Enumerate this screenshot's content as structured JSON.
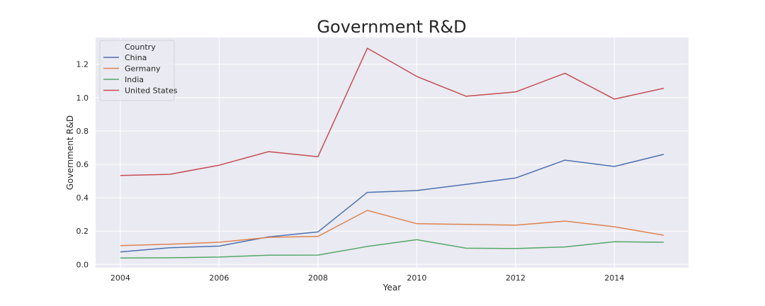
{
  "chart_data": {
    "type": "line",
    "title": "Government R&D",
    "xlabel": "Year",
    "ylabel": "Government R&D",
    "xlim": [
      2003.5,
      2015.5
    ],
    "ylim": [
      -0.02,
      1.36
    ],
    "x": [
      2004,
      2005,
      2006,
      2007,
      2008,
      2009,
      2010,
      2011,
      2012,
      2013,
      2014,
      2015
    ],
    "x_ticks": [
      2004,
      2006,
      2008,
      2010,
      2012,
      2014
    ],
    "x_tick_labels": [
      "2004",
      "2006",
      "2008",
      "2010",
      "2012",
      "2014"
    ],
    "y_ticks": [
      0.0,
      0.2,
      0.4,
      0.6,
      0.8,
      1.0,
      1.2
    ],
    "y_tick_labels": [
      "0.0",
      "0.2",
      "0.4",
      "0.6",
      "0.8",
      "1.0",
      "1.2"
    ],
    "grid": true,
    "legend": {
      "title": "Country",
      "placement": "top-left"
    },
    "series": [
      {
        "name": "China",
        "color": "#4c72b0",
        "values": [
          0.075,
          0.1,
          0.11,
          0.165,
          0.195,
          0.432,
          0.443,
          0.48,
          0.518,
          0.625,
          0.587,
          0.66
        ]
      },
      {
        "name": "Germany",
        "color": "#dd8452",
        "values": [
          0.113,
          0.121,
          0.133,
          0.162,
          0.168,
          0.324,
          0.244,
          0.24,
          0.235,
          0.26,
          0.226,
          0.175
        ]
      },
      {
        "name": "India",
        "color": "#55a868",
        "values": [
          0.038,
          0.04,
          0.044,
          0.055,
          0.056,
          0.108,
          0.148,
          0.097,
          0.095,
          0.105,
          0.136,
          0.133
        ]
      },
      {
        "name": "United States",
        "color": "#c44e52",
        "values": [
          0.533,
          0.54,
          0.595,
          0.676,
          0.646,
          1.296,
          1.127,
          1.008,
          1.034,
          1.146,
          0.991,
          1.056
        ]
      }
    ],
    "background_color": "#eaeaf2",
    "grid_color": "#ffffff"
  }
}
